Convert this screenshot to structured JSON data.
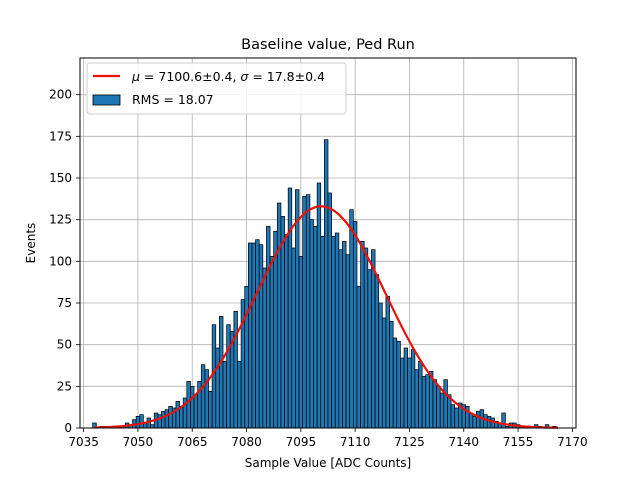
{
  "chart_data": {
    "type": "bar",
    "title": "Baseline value, Ped Run",
    "xlabel": "Sample Value [ADC Counts]",
    "ylabel": "Events",
    "xlim": [
      7034,
      7171
    ],
    "ylim": [
      0,
      222
    ],
    "xticks": [
      7035,
      7050,
      7065,
      7080,
      7095,
      7110,
      7125,
      7140,
      7155,
      7170
    ],
    "yticks": [
      0,
      25,
      50,
      75,
      100,
      125,
      150,
      175,
      200
    ],
    "grid": true,
    "legend_position": "upper left",
    "bar_color": "#1f77b4",
    "fit_color": "#e8120c",
    "bin_width": 1,
    "histogram": {
      "name": "RMS = 18.07",
      "x": [
        7038,
        7039,
        7040,
        7041,
        7042,
        7043,
        7044,
        7045,
        7046,
        7047,
        7048,
        7049,
        7050,
        7051,
        7052,
        7053,
        7054,
        7055,
        7056,
        7057,
        7058,
        7059,
        7060,
        7061,
        7062,
        7063,
        7064,
        7065,
        7066,
        7067,
        7068,
        7069,
        7070,
        7071,
        7072,
        7073,
        7074,
        7075,
        7076,
        7077,
        7078,
        7079,
        7080,
        7081,
        7082,
        7083,
        7084,
        7085,
        7086,
        7087,
        7088,
        7089,
        7090,
        7091,
        7092,
        7093,
        7094,
        7095,
        7096,
        7097,
        7098,
        7099,
        7100,
        7101,
        7102,
        7103,
        7104,
        7105,
        7106,
        7107,
        7108,
        7109,
        7110,
        7111,
        7112,
        7113,
        7114,
        7115,
        7116,
        7117,
        7118,
        7119,
        7120,
        7121,
        7122,
        7123,
        7124,
        7125,
        7126,
        7127,
        7128,
        7129,
        7130,
        7131,
        7132,
        7133,
        7134,
        7135,
        7136,
        7137,
        7138,
        7139,
        7140,
        7141,
        7142,
        7143,
        7144,
        7145,
        7146,
        7147,
        7148,
        7149,
        7150,
        7151,
        7152,
        7153,
        7154,
        7155,
        7156,
        7157,
        7158,
        7159,
        7160,
        7161,
        7162,
        7163,
        7164,
        7165
      ],
      "values": [
        3,
        0,
        1,
        1,
        1,
        1,
        0,
        1,
        1,
        3,
        2,
        5,
        7,
        8,
        3,
        6,
        2,
        9,
        8,
        10,
        11,
        13,
        12,
        16,
        13,
        18,
        28,
        25,
        20,
        28,
        38,
        35,
        22,
        62,
        48,
        67,
        40,
        62,
        58,
        70,
        40,
        77,
        85,
        111,
        111,
        113,
        110,
        96,
        121,
        103,
        118,
        135,
        127,
        116,
        144,
        108,
        143,
        103,
        139,
        140,
        125,
        121,
        147,
        115,
        173,
        141,
        115,
        117,
        107,
        112,
        104,
        131,
        124,
        85,
        112,
        108,
        95,
        107,
        92,
        75,
        66,
        79,
        64,
        54,
        52,
        42,
        48,
        42,
        47,
        35,
        40,
        31,
        32,
        34,
        29,
        25,
        21,
        29,
        20,
        14,
        12,
        15,
        14,
        13,
        9,
        7,
        10,
        11,
        8,
        7,
        6,
        4,
        3,
        9,
        1,
        3,
        3,
        2,
        1,
        1,
        1,
        0,
        2,
        1,
        0,
        2,
        0,
        1
      ]
    },
    "fit": {
      "name": "$\\mu = 7100.6$±0.4, $\\sigma = 17.8$±0.4",
      "legend_mu_symbol": "μ",
      "legend_mu_text": " = 7100.6±0.4, ",
      "legend_sigma_symbol": "σ",
      "legend_sigma_text": " = 17.8±0.4",
      "mu": 7100.6,
      "sigma": 17.8,
      "amplitude": 133,
      "x_range": [
        7038,
        7166
      ]
    },
    "legend_rms": "RMS = 18.07"
  }
}
